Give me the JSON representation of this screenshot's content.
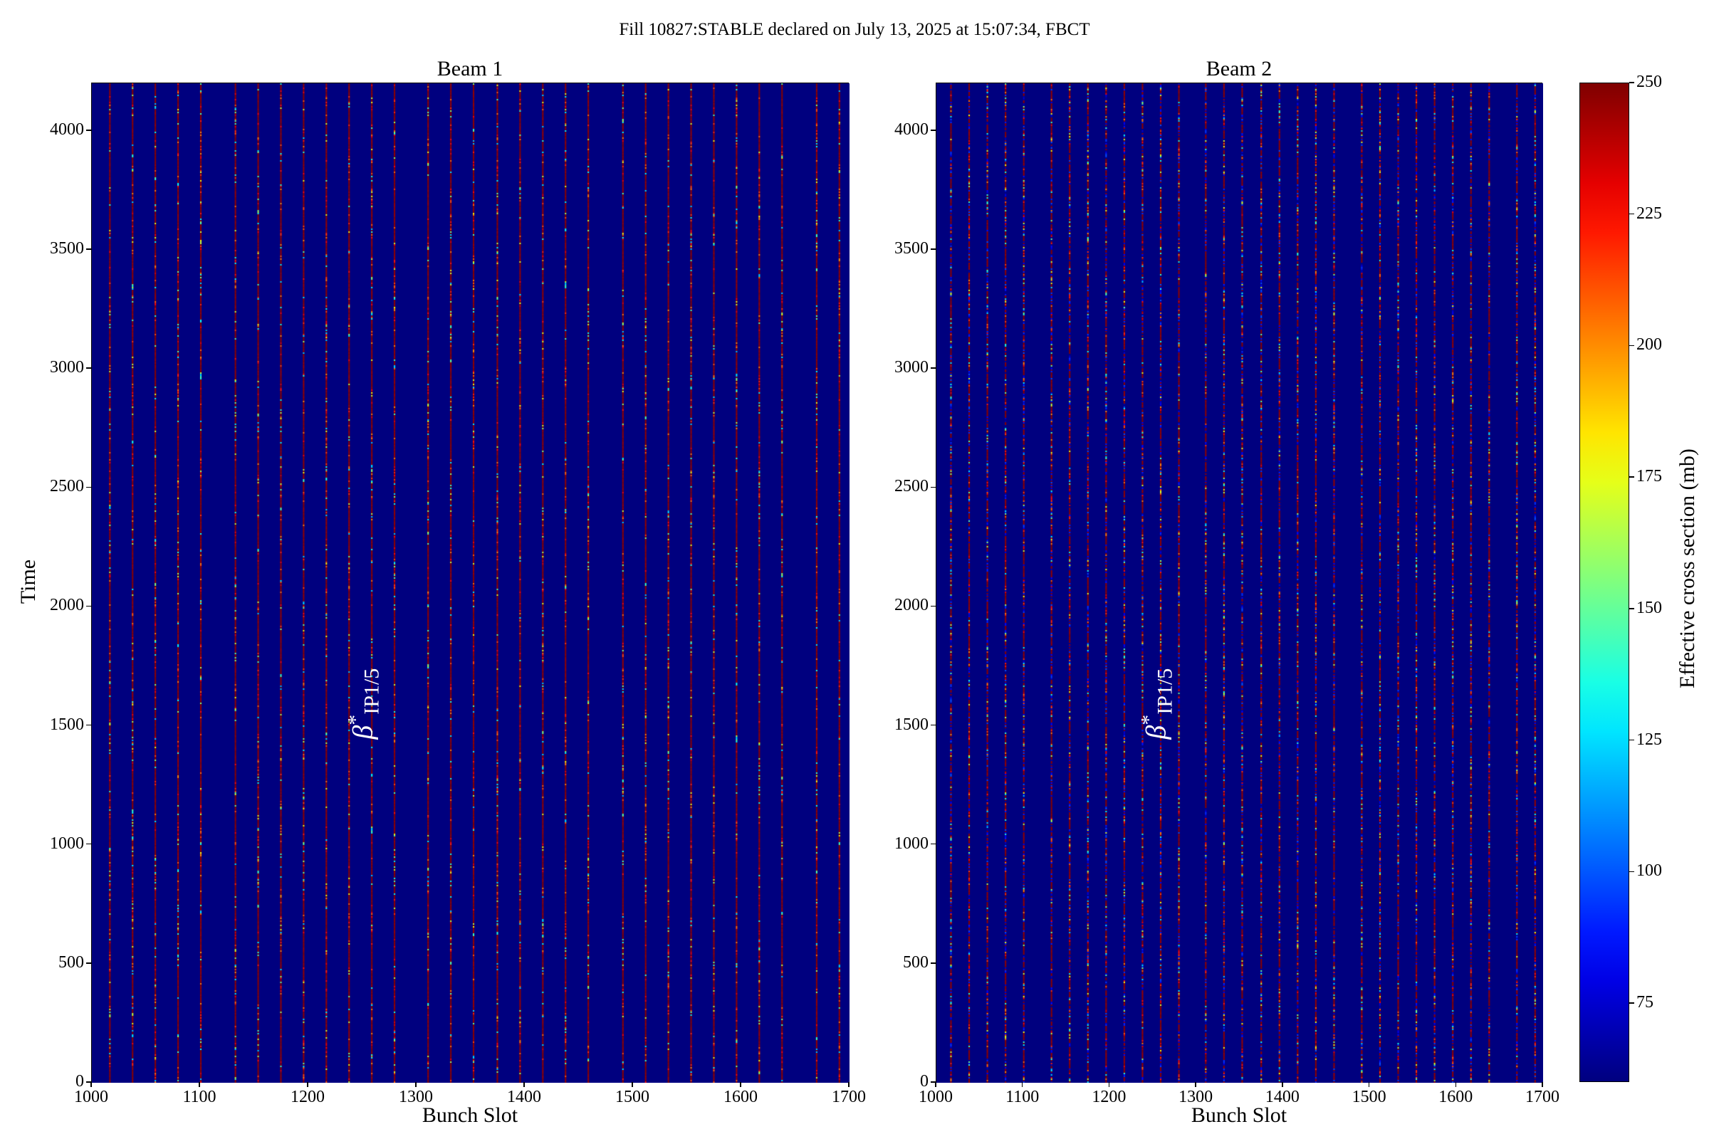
{
  "chart_data": {
    "type": "heatmap",
    "title": "Fill 10827:STABLE declared on July 13, 2025 at 15:07:34, FBCT",
    "colormap": "jet",
    "colorbar": {
      "label": "Effective cross section (mb)",
      "range": [
        60,
        250
      ],
      "ticks": [
        75,
        100,
        125,
        150,
        175,
        200,
        225,
        250
      ]
    },
    "background_color": "#00007f",
    "panels": [
      {
        "title": "Beam 1",
        "xlabel": "Bunch Slot",
        "ylabel": "Time",
        "xlim": [
          1000,
          1700
        ],
        "ylim": [
          0,
          4200
        ],
        "xticks": [
          1000,
          1100,
          1200,
          1300,
          1400,
          1500,
          1600,
          1700
        ],
        "yticks": [
          0,
          500,
          1000,
          1500,
          2000,
          2500,
          3000,
          3500,
          4000
        ],
        "filled_slots": [
          1016,
          1037,
          1058,
          1079,
          1100,
          1132,
          1153,
          1174,
          1195,
          1216,
          1237,
          1258,
          1279,
          1310,
          1331,
          1352,
          1374,
          1395,
          1416,
          1437,
          1458,
          1490,
          1511,
          1532,
          1553,
          1574,
          1595,
          1616,
          1637,
          1669,
          1690
        ],
        "typical_value": "~250 with scattered 120-230",
        "annotation": {
          "text": "β*IP1/5",
          "base": "β",
          "sup": "*",
          "sub": "IP1/5",
          "x": 1238,
          "y": 1500
        }
      },
      {
        "title": "Beam 2",
        "xlabel": "Bunch Slot",
        "ylabel": "",
        "xlim": [
          1000,
          1700
        ],
        "ylim": [
          0,
          4200
        ],
        "xticks": [
          1000,
          1100,
          1200,
          1300,
          1400,
          1500,
          1600,
          1700
        ],
        "yticks": [
          0,
          500,
          1000,
          1500,
          2000,
          2500,
          3000,
          3500,
          4000
        ],
        "filled_slots": [
          1016,
          1037,
          1058,
          1079,
          1100,
          1132,
          1153,
          1174,
          1195,
          1216,
          1237,
          1258,
          1279,
          1310,
          1331,
          1352,
          1374,
          1395,
          1416,
          1437,
          1458,
          1490,
          1511,
          1532,
          1553,
          1574,
          1595,
          1616,
          1637,
          1669,
          1690
        ],
        "typical_value": "mixed 120-250",
        "annotation": {
          "text": "β*IP1/5",
          "base": "β",
          "sup": "*",
          "sub": "IP1/5",
          "x": 1238,
          "y": 1500
        }
      }
    ]
  }
}
